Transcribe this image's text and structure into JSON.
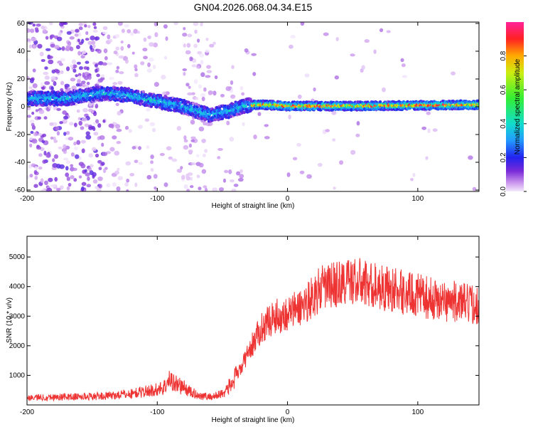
{
  "title": "GN04.2026.068.04.34.E15",
  "chart_data": [
    {
      "type": "heatmap",
      "title": "GN04.2026.068.04.34.E15",
      "xlabel": "Height of straight line (km)",
      "ylabel": "Frequency (Hz)",
      "xlim": [
        -200,
        147
      ],
      "ylim": [
        -61,
        61
      ],
      "xticks": [
        -200,
        -100,
        0,
        100
      ],
      "yticks": [
        -60,
        -40,
        -20,
        0,
        20,
        40,
        60
      ],
      "colorbar": {
        "label": "Normalized spectral amplitude",
        "range": [
          0,
          1
        ],
        "ticks": [
          0.0,
          0.2,
          0.4,
          0.6,
          0.8
        ]
      },
      "ridge": {
        "description_points_x": [
          -200,
          -170,
          -140,
          -120,
          -100,
          -80,
          -60,
          -45,
          -35,
          -30,
          -28,
          -20,
          0,
          50,
          100,
          147
        ],
        "description_points_freq": [
          6,
          6,
          10,
          8,
          4,
          0,
          -6,
          -3,
          0,
          1,
          1,
          1.5,
          0.5,
          0.5,
          1,
          1.5
        ]
      }
    },
    {
      "type": "line",
      "xlabel": "Height of straight line (km)",
      "ylabel": "SNR (10 * v/v)",
      "xlim": [
        -200,
        147
      ],
      "ylim": [
        0,
        5700
      ],
      "xticks": [
        -200,
        -100,
        0,
        100
      ],
      "yticks": [
        1000,
        2000,
        3000,
        4000,
        5000
      ],
      "series": [
        {
          "name": "SNR",
          "color": "#ee3333",
          "x": [
            -200,
            -180,
            -160,
            -140,
            -120,
            -110,
            -100,
            -95,
            -90,
            -85,
            -80,
            -75,
            -70,
            -65,
            -60,
            -55,
            -50,
            -45,
            -40,
            -35,
            -30,
            -25,
            -20,
            -15,
            -10,
            -5,
            0,
            5,
            10,
            15,
            20,
            25,
            30,
            40,
            50,
            60,
            70,
            80,
            90,
            100,
            110,
            120,
            130,
            140,
            147
          ],
          "y": [
            250,
            260,
            280,
            300,
            380,
            450,
            520,
            600,
            850,
            700,
            600,
            450,
            350,
            300,
            280,
            300,
            400,
            600,
            900,
            1300,
            1800,
            2200,
            2600,
            2800,
            3000,
            3000,
            3100,
            3200,
            3300,
            3500,
            3700,
            3900,
            4000,
            4100,
            4200,
            4100,
            4000,
            3900,
            3800,
            3700,
            3600,
            3500,
            3500,
            3400,
            3400
          ]
        }
      ]
    }
  ]
}
